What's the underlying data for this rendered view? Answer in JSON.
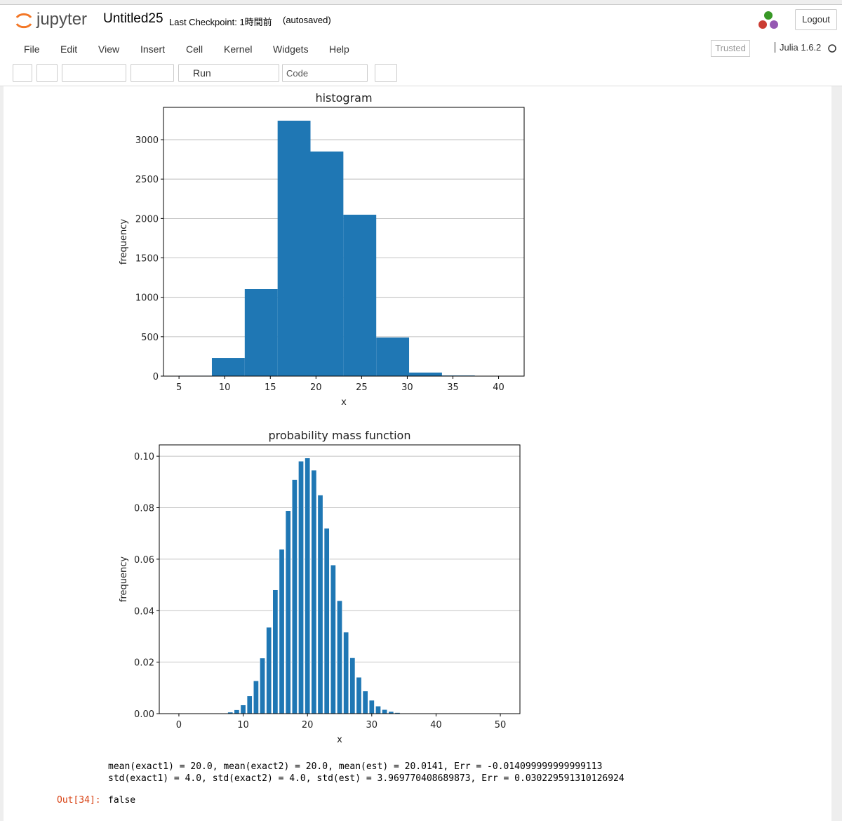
{
  "header": {
    "logo": "jupyter",
    "notebook_name": "Untitled25",
    "checkpoint": "Last Checkpoint: 1時間前",
    "autosaved": "(autosaved)",
    "logout": "Logout"
  },
  "menu": [
    "File",
    "Edit",
    "View",
    "Insert",
    "Cell",
    "Kernel",
    "Widgets",
    "Help"
  ],
  "trusted": "Trusted",
  "kernel": "Julia 1.6.2",
  "toolbar": {
    "run": "Run",
    "cell_type": "Code"
  },
  "chart_data": [
    {
      "type": "histogram",
      "title": "histogram",
      "x_label": "x",
      "y_label": "frequency",
      "color": "#1f77b4",
      "grid": true,
      "bins": [
        5,
        8.6,
        12.2,
        15.8,
        19.4,
        23,
        26.6,
        30.2,
        33.8,
        37.4,
        41
      ],
      "counts": [
        5,
        231,
        1104,
        3241,
        2850,
        2048,
        490,
        45,
        8,
        1
      ],
      "xlim": [
        3.3,
        42.8
      ],
      "xticks": [
        5,
        10,
        15,
        20,
        25,
        30,
        35,
        40
      ],
      "ylim": [
        0,
        3410
      ],
      "yticks": [
        0,
        500,
        1000,
        1500,
        2000,
        2500,
        3000
      ]
    },
    {
      "type": "bar",
      "title": "probability mass function",
      "x_label": "x",
      "y_label": "frequency",
      "color": "#1f77b4",
      "grid": true,
      "x": [
        0,
        1,
        2,
        3,
        4,
        5,
        6,
        7,
        8,
        9,
        10,
        11,
        12,
        13,
        14,
        15,
        16,
        17,
        18,
        19,
        20,
        21,
        22,
        23,
        24,
        25,
        26,
        27,
        28,
        29,
        30,
        31,
        32,
        33,
        34,
        35,
        36,
        37,
        38,
        39,
        40,
        41,
        42,
        43,
        44,
        45,
        46,
        47,
        48,
        49,
        50
      ],
      "values": [
        0,
        0,
        0,
        0,
        3e-06,
        1.5e-05,
        5.9e-05,
        0.000199,
        0.000578,
        0.001478,
        0.003363,
        0.006878,
        0.012754,
        0.021583,
        0.033531,
        0.048061,
        0.063832,
        0.078852,
        0.090898,
        0.098074,
        0.0993,
        0.094571,
        0.084899,
        0.07198,
        0.057734,
        0.043878,
        0.031643,
        0.021681,
        0.014131,
        0.008771,
        0.00519,
        0.00293,
        0.001579,
        0.000814,
        0.000401,
        0.000189,
        8.5e-05,
        3.7e-05,
        1.5e-05,
        0,
        0,
        0,
        0,
        0,
        0,
        0,
        0,
        0,
        0,
        0,
        0
      ],
      "xlim": [
        -3.05,
        53.05
      ],
      "xticks": [
        0,
        10,
        20,
        30,
        40,
        50
      ],
      "ylim": [
        0,
        0.1044
      ],
      "yticks": [
        {
          "value": 0,
          "label": "0.00"
        },
        0.02,
        0.04,
        0.06,
        0.08,
        {
          "value": 0.1,
          "label": "0.10"
        }
      ]
    }
  ],
  "output": {
    "stdout": [
      "mean(exact1) = 20.0, mean(exact2) = 20.0, mean(est) = 20.0141, Err = -0.014099999999999113",
      "std(exact1) = 4.0, std(exact2) = 4.0, std(est) = 3.969770408689873, Err = 0.030229591310126924"
    ],
    "prompt": "Out[34]:",
    "result": "false"
  }
}
